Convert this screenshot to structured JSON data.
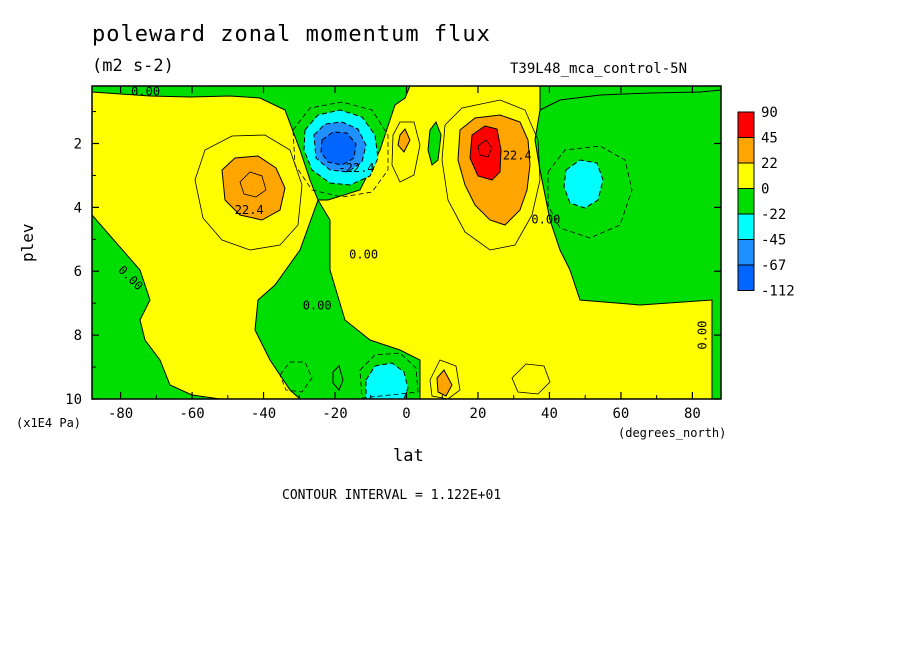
{
  "chart_data": {
    "type": "heatmap",
    "subtype": "filled-contour",
    "title": "poleward zonal momentum flux",
    "units": "(m2 s-2)",
    "dataset": "T39L48_mca_control-5N",
    "xlabel": "lat",
    "x_units": "(degrees_north)",
    "ylabel": "plev",
    "y_units": "(x1E4 Pa)",
    "xlim": [
      -88,
      88
    ],
    "ylim": [
      10,
      0.2
    ],
    "x_ticks": [
      "-80",
      "-60",
      "-40",
      "-20",
      "0",
      "20",
      "40",
      "60",
      "80"
    ],
    "x_tick_values": [
      -80,
      -60,
      -40,
      -20,
      0,
      20,
      40,
      60,
      80
    ],
    "y_ticks": [
      "2",
      "4",
      "6",
      "8",
      "10"
    ],
    "y_tick_values": [
      2,
      4,
      6,
      8,
      10
    ],
    "contour_interval": "CONTOUR INTERVAL = 1.122E+01",
    "legend": {
      "placement": "right",
      "levels": [
        "90",
        "45",
        "22",
        "0",
        "-22",
        "-45",
        "-67",
        "-112"
      ],
      "colors": [
        "#ff0000",
        "#ffa500",
        "#ffff00",
        "#00dd00",
        "#00ffff",
        "#1e90ff",
        "#0066ff"
      ]
    },
    "contour_labels": [
      {
        "text": "0.00",
        "lat": -73,
        "plev": 0.5
      },
      {
        "text": "0.00",
        "lat": -78,
        "plev": 6.3
      },
      {
        "text": "22.4",
        "lat": -44,
        "plev": 4.2
      },
      {
        "text": "0.00",
        "lat": -25,
        "plev": 7.2
      },
      {
        "text": "0.00",
        "lat": -12,
        "plev": 5.6
      },
      {
        "text": "-22.4",
        "lat": -14,
        "plev": 2.9
      },
      {
        "text": "22.4",
        "lat": 31,
        "plev": 2.5
      },
      {
        "text": "0.00",
        "lat": 39,
        "plev": 4.5
      },
      {
        "text": "0.00",
        "lat": 84,
        "plev": 8.0
      }
    ],
    "features": [
      {
        "sign": "positive",
        "lat": -43,
        "plev": 3.1,
        "peak_band": "22 to 45"
      },
      {
        "sign": "negative",
        "lat": -19,
        "plev": 2.2,
        "peak_band": "-112 to -67"
      },
      {
        "sign": "positive",
        "lat": 23,
        "plev": 2.3,
        "peak_band": "45 to 90"
      },
      {
        "sign": "negative",
        "lat": 49,
        "plev": 3.3,
        "peak_band": "-45 to -22"
      },
      {
        "sign": "negative",
        "lat": -6,
        "plev": 9.4,
        "peak_band": "-45 to -22"
      },
      {
        "sign": "positive",
        "lat": 11,
        "plev": 9.5,
        "peak_band": "22 to 45"
      }
    ]
  }
}
